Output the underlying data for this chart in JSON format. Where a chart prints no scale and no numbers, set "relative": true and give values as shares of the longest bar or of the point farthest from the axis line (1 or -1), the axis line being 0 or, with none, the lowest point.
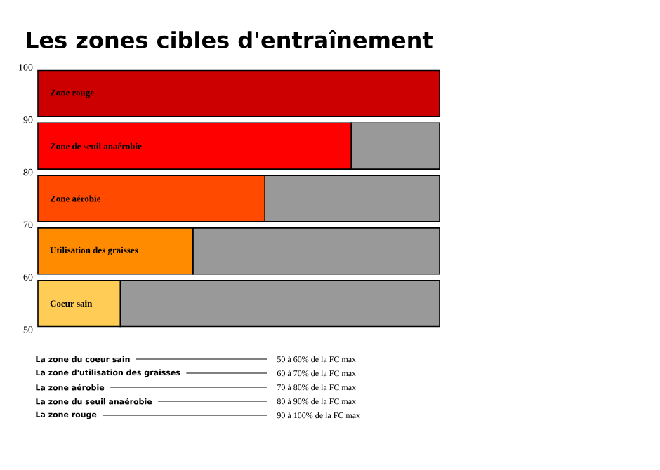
{
  "chart_data": {
    "type": "bar",
    "orientation": "horizontal",
    "stacked": true,
    "relative": true,
    "title": "Les zones cibles d'entraînement",
    "x": [
      95,
      85,
      75,
      65,
      55
    ],
    "ylim": [
      50,
      100
    ],
    "yticks": [
      50,
      60,
      70,
      80,
      90,
      100
    ],
    "series": [
      {
        "colors": [
          "#cc0000",
          "#ff0000",
          "#ff4a00",
          "#ff8c00",
          "#ffcc55"
        ],
        "values": [
          1,
          0.78,
          0.565,
          0.386,
          0.205
        ]
      },
      {
        "color": "#999999",
        "values": [
          0,
          0.22,
          0.435,
          0.614,
          0.795
        ]
      }
    ],
    "annotations": [
      "Zone rouge",
      "Zone de seuil anaérobie",
      "Zone aérobie",
      "Utilisation des graisses",
      "Coeur sain",
      "La zone du coeur sain",
      "50 à 60% de la FC max",
      "La zone d'utilisation des graisses",
      "60 à 70% de la FC max",
      "La zone aérobie",
      "70 à 80% de la FC max",
      "La zone du seuil anaérobie",
      "80 à 90% de la FC max",
      "La zone rouge",
      "90 à 100% de la FC max"
    ]
  }
}
